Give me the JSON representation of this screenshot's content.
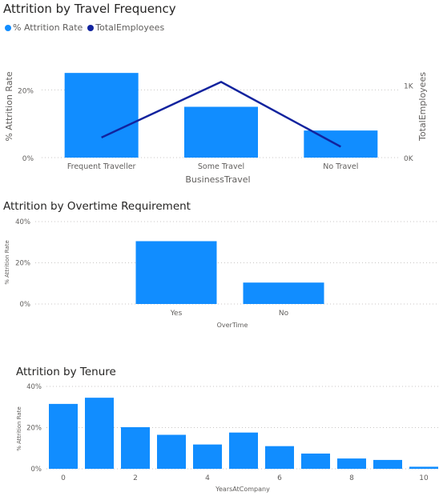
{
  "colors": {
    "bar": "#118dff",
    "line": "#12239e",
    "grid": "#c8c6c4",
    "text": "#605e5c",
    "title": "#252423"
  },
  "chart_data": [
    {
      "type": "bar",
      "title": "Attrition by Travel Frequency",
      "legend": {
        "position": "top-left",
        "items": [
          "% Attrition Rate",
          "TotalEmployees"
        ]
      },
      "categories": [
        "Frequent Traveller",
        "Some Travel",
        "No Travel"
      ],
      "series": [
        {
          "name": "% Attrition Rate",
          "type": "bar",
          "axis": "left",
          "values": [
            25,
            15,
            8
          ]
        },
        {
          "name": "TotalEmployees",
          "type": "line",
          "axis": "right",
          "values": [
            277,
            1043,
            150
          ]
        }
      ],
      "xlabel": "BusinessTravel",
      "ylabel": "% Attrition Rate",
      "y2label": "TotalEmployees",
      "ylim": [
        0,
        30
      ],
      "y2lim": [
        0,
        1400
      ],
      "yticks": [
        "0%",
        "20%"
      ],
      "y2ticks": [
        "0K",
        "1K"
      ],
      "grid": true
    },
    {
      "type": "bar",
      "title": "Attrition by Overtime Requirement",
      "categories": [
        "Yes",
        "No"
      ],
      "series": [
        {
          "name": "% Attrition Rate",
          "values": [
            30.5,
            10.4
          ]
        }
      ],
      "xlabel": "OverTime",
      "ylabel": "% Attrition Rate",
      "ylim": [
        0,
        40
      ],
      "yticks": [
        "0%",
        "20%",
        "40%"
      ],
      "grid": true
    },
    {
      "type": "bar",
      "title": "Attrition by Tenure",
      "x": [
        0,
        1,
        2,
        3,
        4,
        5,
        6,
        7,
        8,
        9,
        10
      ],
      "series": [
        {
          "name": "% Attrition Rate",
          "values": [
            31.5,
            34.5,
            20.2,
            16.5,
            11.8,
            17.6,
            11.0,
            7.4,
            5.0,
            4.3,
            1.0
          ]
        }
      ],
      "xlabel": "YearsAtCompany",
      "ylabel": "% Attrition Rate",
      "xticks": [
        "0",
        "2",
        "4",
        "6",
        "8",
        "10"
      ],
      "ylim": [
        0,
        40
      ],
      "yticks": [
        "0%",
        "20%",
        "40%"
      ],
      "grid": true
    }
  ]
}
